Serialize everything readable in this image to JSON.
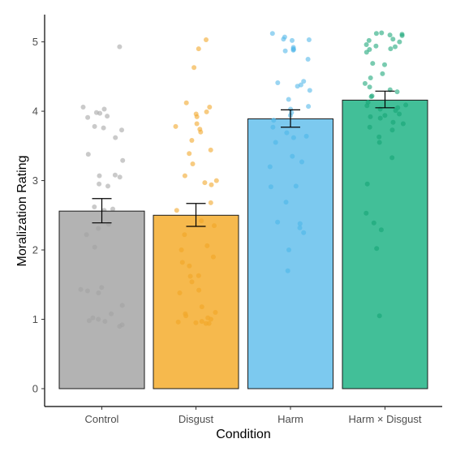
{
  "chart_data": {
    "type": "bar",
    "xlabel": "Condition",
    "ylabel": "Moralization Rating",
    "ylim": [
      0,
      5.4
    ],
    "yticks": [
      0,
      1,
      2,
      3,
      4,
      5
    ],
    "grid": false,
    "categories": [
      "Control",
      "Disgust",
      "Harm",
      "Harm × Disgust"
    ],
    "colors": [
      "#b3b3b3",
      "#f6b94d",
      "#7cc9ef",
      "#42bf98"
    ],
    "point_colors": [
      "#a6a6a6",
      "#f2a92d",
      "#56b9ea",
      "#1fa97c"
    ],
    "series": [
      {
        "values": [
          2.56,
          2.5,
          3.89,
          4.16
        ],
        "error_low": [
          2.39,
          2.34,
          3.77,
          4.05
        ],
        "error_high": [
          2.74,
          2.67,
          4.02,
          4.29
        ]
      }
    ],
    "points": [
      [
        4.93,
        4.06,
        4.03,
        3.98,
        3.97,
        3.93,
        3.91,
        3.78,
        3.76,
        3.73,
        3.62,
        3.38,
        3.29,
        3.08,
        3.07,
        3.05,
        2.95,
        2.92,
        2.62,
        2.59,
        2.57,
        2.37,
        2.31,
        2.22,
        2.04,
        1.46,
        1.43,
        1.41,
        1.38,
        1.2,
        1.08,
        1.02,
        1.0,
        0.98,
        0.97,
        0.92,
        0.9
      ],
      [
        5.03,
        4.9,
        4.63,
        4.12,
        4.06,
        3.99,
        3.96,
        3.92,
        3.82,
        3.78,
        3.74,
        3.7,
        3.58,
        3.44,
        3.39,
        3.24,
        3.07,
        3.0,
        2.97,
        2.94,
        2.68,
        2.57,
        2.42,
        2.35,
        2.22,
        2.06,
        2.0,
        1.9,
        1.82,
        1.77,
        1.63,
        1.62,
        1.54,
        1.42,
        1.38,
        1.18,
        1.1,
        1.08,
        1.05,
        1.02,
        1.0,
        0.97,
        0.96,
        0.95,
        0.94,
        0.94
      ],
      [
        5.12,
        5.07,
        5.04,
        5.03,
        5.02,
        4.92,
        4.9,
        4.89,
        4.88,
        4.87,
        4.75,
        4.43,
        4.41,
        4.38,
        4.36,
        4.3,
        4.17,
        4.07,
        4.03,
        3.98,
        3.94,
        3.87,
        3.77,
        3.69,
        3.64,
        3.62,
        3.55,
        3.35,
        3.27,
        3.2,
        2.92,
        2.91,
        2.69,
        2.4,
        2.38,
        2.32,
        2.25,
        2.0,
        1.7
      ],
      [
        5.13,
        5.12,
        5.11,
        5.1,
        5.09,
        5.04,
        5.02,
        5.0,
        4.96,
        4.94,
        4.93,
        4.9,
        4.89,
        4.85,
        4.69,
        4.67,
        4.54,
        4.48,
        4.4,
        4.35,
        4.31,
        4.28,
        4.22,
        4.21,
        4.13,
        4.09,
        4.08,
        4.05,
        4.03,
        4.01,
        3.96,
        3.94,
        3.92,
        3.9,
        3.84,
        3.82,
        3.77,
        3.73,
        3.63,
        3.55,
        3.33,
        2.95,
        2.53,
        2.39,
        2.29,
        2.02,
        1.05
      ]
    ]
  }
}
